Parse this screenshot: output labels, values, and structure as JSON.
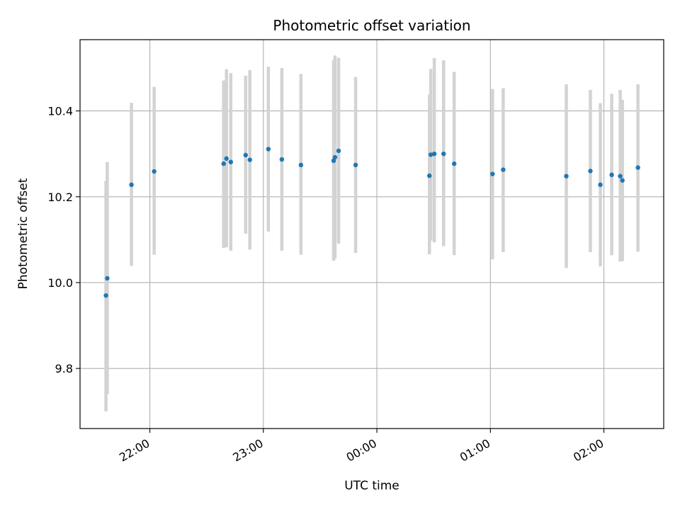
{
  "chart_data": {
    "type": "scatter",
    "title": "Photometric offset variation",
    "xlabel": "UTC time",
    "ylabel": "Photometric offset",
    "x_unit": "hours after 21:00 UTC, wrapping past midnight",
    "xlim": [
      0.385,
      5.527
    ],
    "ylim": [
      9.66,
      10.566
    ],
    "grid": true,
    "x_ticks": [
      {
        "value": 1.0,
        "label": "22:00"
      },
      {
        "value": 2.0,
        "label": "23:00"
      },
      {
        "value": 3.0,
        "label": "00:00"
      },
      {
        "value": 4.0,
        "label": "01:00"
      },
      {
        "value": 5.0,
        "label": "02:00"
      }
    ],
    "y_ticks": [
      {
        "value": 9.8,
        "label": "9.8"
      },
      {
        "value": 10.0,
        "label": "10.0"
      },
      {
        "value": 10.2,
        "label": "10.2"
      },
      {
        "value": 10.4,
        "label": "10.4"
      }
    ],
    "colors": {
      "points": "#1f77b4",
      "errorbars": "#d3d3d3",
      "grid": "#b0b0b0"
    },
    "points": [
      {
        "x": 0.613,
        "y": 9.97,
        "ylo": 9.7,
        "yhi": 10.237
      },
      {
        "x": 0.625,
        "y": 10.01,
        "ylo": 9.74,
        "yhi": 10.281
      },
      {
        "x": 0.838,
        "y": 10.228,
        "ylo": 10.039,
        "yhi": 10.419
      },
      {
        "x": 1.038,
        "y": 10.259,
        "ylo": 10.065,
        "yhi": 10.456
      },
      {
        "x": 1.65,
        "y": 10.277,
        "ylo": 10.081,
        "yhi": 10.471
      },
      {
        "x": 1.675,
        "y": 10.289,
        "ylo": 10.082,
        "yhi": 10.497
      },
      {
        "x": 1.713,
        "y": 10.281,
        "ylo": 10.074,
        "yhi": 10.488
      },
      {
        "x": 1.844,
        "y": 10.297,
        "ylo": 10.114,
        "yhi": 10.482
      },
      {
        "x": 1.881,
        "y": 10.286,
        "ylo": 10.077,
        "yhi": 10.495
      },
      {
        "x": 2.044,
        "y": 10.311,
        "ylo": 10.119,
        "yhi": 10.503
      },
      {
        "x": 2.163,
        "y": 10.287,
        "ylo": 10.074,
        "yhi": 10.5
      },
      {
        "x": 2.331,
        "y": 10.274,
        "ylo": 10.065,
        "yhi": 10.486
      },
      {
        "x": 2.619,
        "y": 10.284,
        "ylo": 10.051,
        "yhi": 10.518
      },
      {
        "x": 2.631,
        "y": 10.292,
        "ylo": 10.056,
        "yhi": 10.529
      },
      {
        "x": 2.663,
        "y": 10.307,
        "ylo": 10.091,
        "yhi": 10.524
      },
      {
        "x": 2.813,
        "y": 10.274,
        "ylo": 10.069,
        "yhi": 10.479
      },
      {
        "x": 3.463,
        "y": 10.249,
        "ylo": 10.066,
        "yhi": 10.438
      },
      {
        "x": 3.475,
        "y": 10.298,
        "ylo": 10.098,
        "yhi": 10.498
      },
      {
        "x": 3.506,
        "y": 10.3,
        "ylo": 10.094,
        "yhi": 10.523
      },
      {
        "x": 3.588,
        "y": 10.3,
        "ylo": 10.085,
        "yhi": 10.518
      },
      {
        "x": 3.681,
        "y": 10.277,
        "ylo": 10.064,
        "yhi": 10.491
      },
      {
        "x": 4.019,
        "y": 10.253,
        "ylo": 10.054,
        "yhi": 10.451
      },
      {
        "x": 4.113,
        "y": 10.263,
        "ylo": 10.071,
        "yhi": 10.453
      },
      {
        "x": 4.669,
        "y": 10.248,
        "ylo": 10.034,
        "yhi": 10.462
      },
      {
        "x": 4.881,
        "y": 10.26,
        "ylo": 10.071,
        "yhi": 10.449
      },
      {
        "x": 4.969,
        "y": 10.228,
        "ylo": 10.038,
        "yhi": 10.418
      },
      {
        "x": 5.069,
        "y": 10.251,
        "ylo": 10.064,
        "yhi": 10.44
      },
      {
        "x": 5.144,
        "y": 10.248,
        "ylo": 10.049,
        "yhi": 10.449
      },
      {
        "x": 5.163,
        "y": 10.238,
        "ylo": 10.05,
        "yhi": 10.426
      },
      {
        "x": 5.3,
        "y": 10.268,
        "ylo": 10.072,
        "yhi": 10.462
      }
    ]
  }
}
